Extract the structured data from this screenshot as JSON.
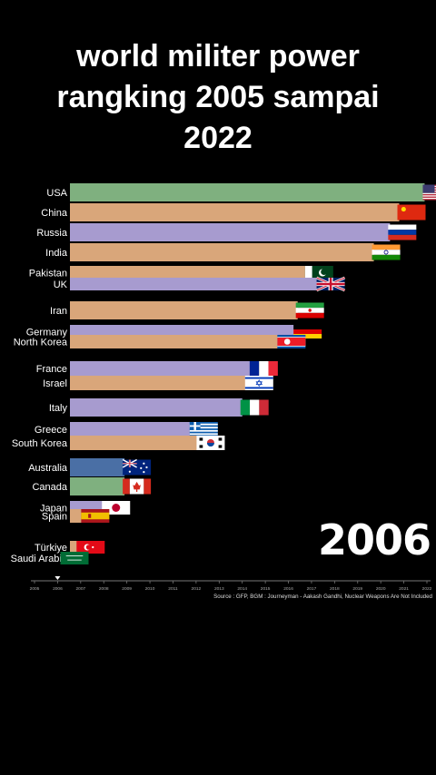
{
  "title_lines": [
    "world militer power",
    "rangking 2005 sampai",
    "2022"
  ],
  "year_label": "2006",
  "source": "Source : GFP, BGM : Journeyman - Aakash Gandhi, Nuclear Weapons Are Not Included",
  "chart_data": {
    "type": "bar",
    "orientation": "horizontal",
    "categories": [
      "USA",
      "China",
      "Russia",
      "India",
      "Pakistan",
      "UK",
      "Iran",
      "Germany",
      "North Korea",
      "France",
      "Israel",
      "Italy",
      "Greece",
      "South Korea",
      "Australia",
      "Canada",
      "Japan",
      "Spain",
      "Türkiye",
      "Saudi Arabia"
    ],
    "values": [
      2021.9,
      2020.8,
      2020.4,
      2019.7,
      2016.8,
      2017.3,
      2016.4,
      2016.3,
      2015.6,
      2014.4,
      2014.2,
      2014.0,
      2011.8,
      2012.1,
      2008.9,
      2008.9,
      2008.0,
      2007.1,
      2006.9,
      2006.2
    ],
    "xaxis_type": "time (year)",
    "xlim": [
      2005,
      2022
    ],
    "xticks": [
      "2005",
      "2006",
      "2007",
      "2008",
      "2009",
      "2010",
      "2011",
      "2012",
      "2013",
      "2014",
      "2015",
      "2016",
      "2017",
      "2018",
      "2019",
      "2020",
      "2021",
      "2022"
    ],
    "current_year_marker": 2006,
    "colors": {
      "USA": "#7fb07f",
      "China": "#d9a67a",
      "Russia": "#a79bcf",
      "India": "#d9a67a",
      "Pakistan": "#d9a67a",
      "UK": "#a79bcf",
      "Iran": "#d9a67a",
      "Germany": "#a79bcf",
      "North Korea": "#d9a67a",
      "France": "#a79bcf",
      "Israel": "#d9a67a",
      "Italy": "#a79bcf",
      "Greece": "#a79bcf",
      "South Korea": "#d9a67a",
      "Australia": "#4a6fa5",
      "Canada": "#7fb07f",
      "Japan": "#a79bcf",
      "Spain": "#d9a67a",
      "Türkiye": "#d9a67a",
      "Saudi Arabia": "#7fb07f"
    },
    "flags": {
      "USA": "flag-usa",
      "China": "flag-china",
      "Russia": "flag-russia",
      "India": "flag-india",
      "Pakistan": "flag-pakistan",
      "UK": "flag-uk",
      "Iran": "flag-iran",
      "Germany": "flag-germany",
      "North Korea": "flag-north-korea",
      "France": "flag-france",
      "Israel": "flag-israel",
      "Italy": "flag-italy",
      "Greece": "flag-greece",
      "South Korea": "flag-south-korea",
      "Australia": "flag-australia",
      "Canada": "flag-canada",
      "Japan": "flag-japan",
      "Spain": "flag-spain",
      "Türkiye": "flag-turkiye",
      "Saudi Arabia": "flag-saudi-arabia"
    },
    "grid": false,
    "legend": "none"
  }
}
